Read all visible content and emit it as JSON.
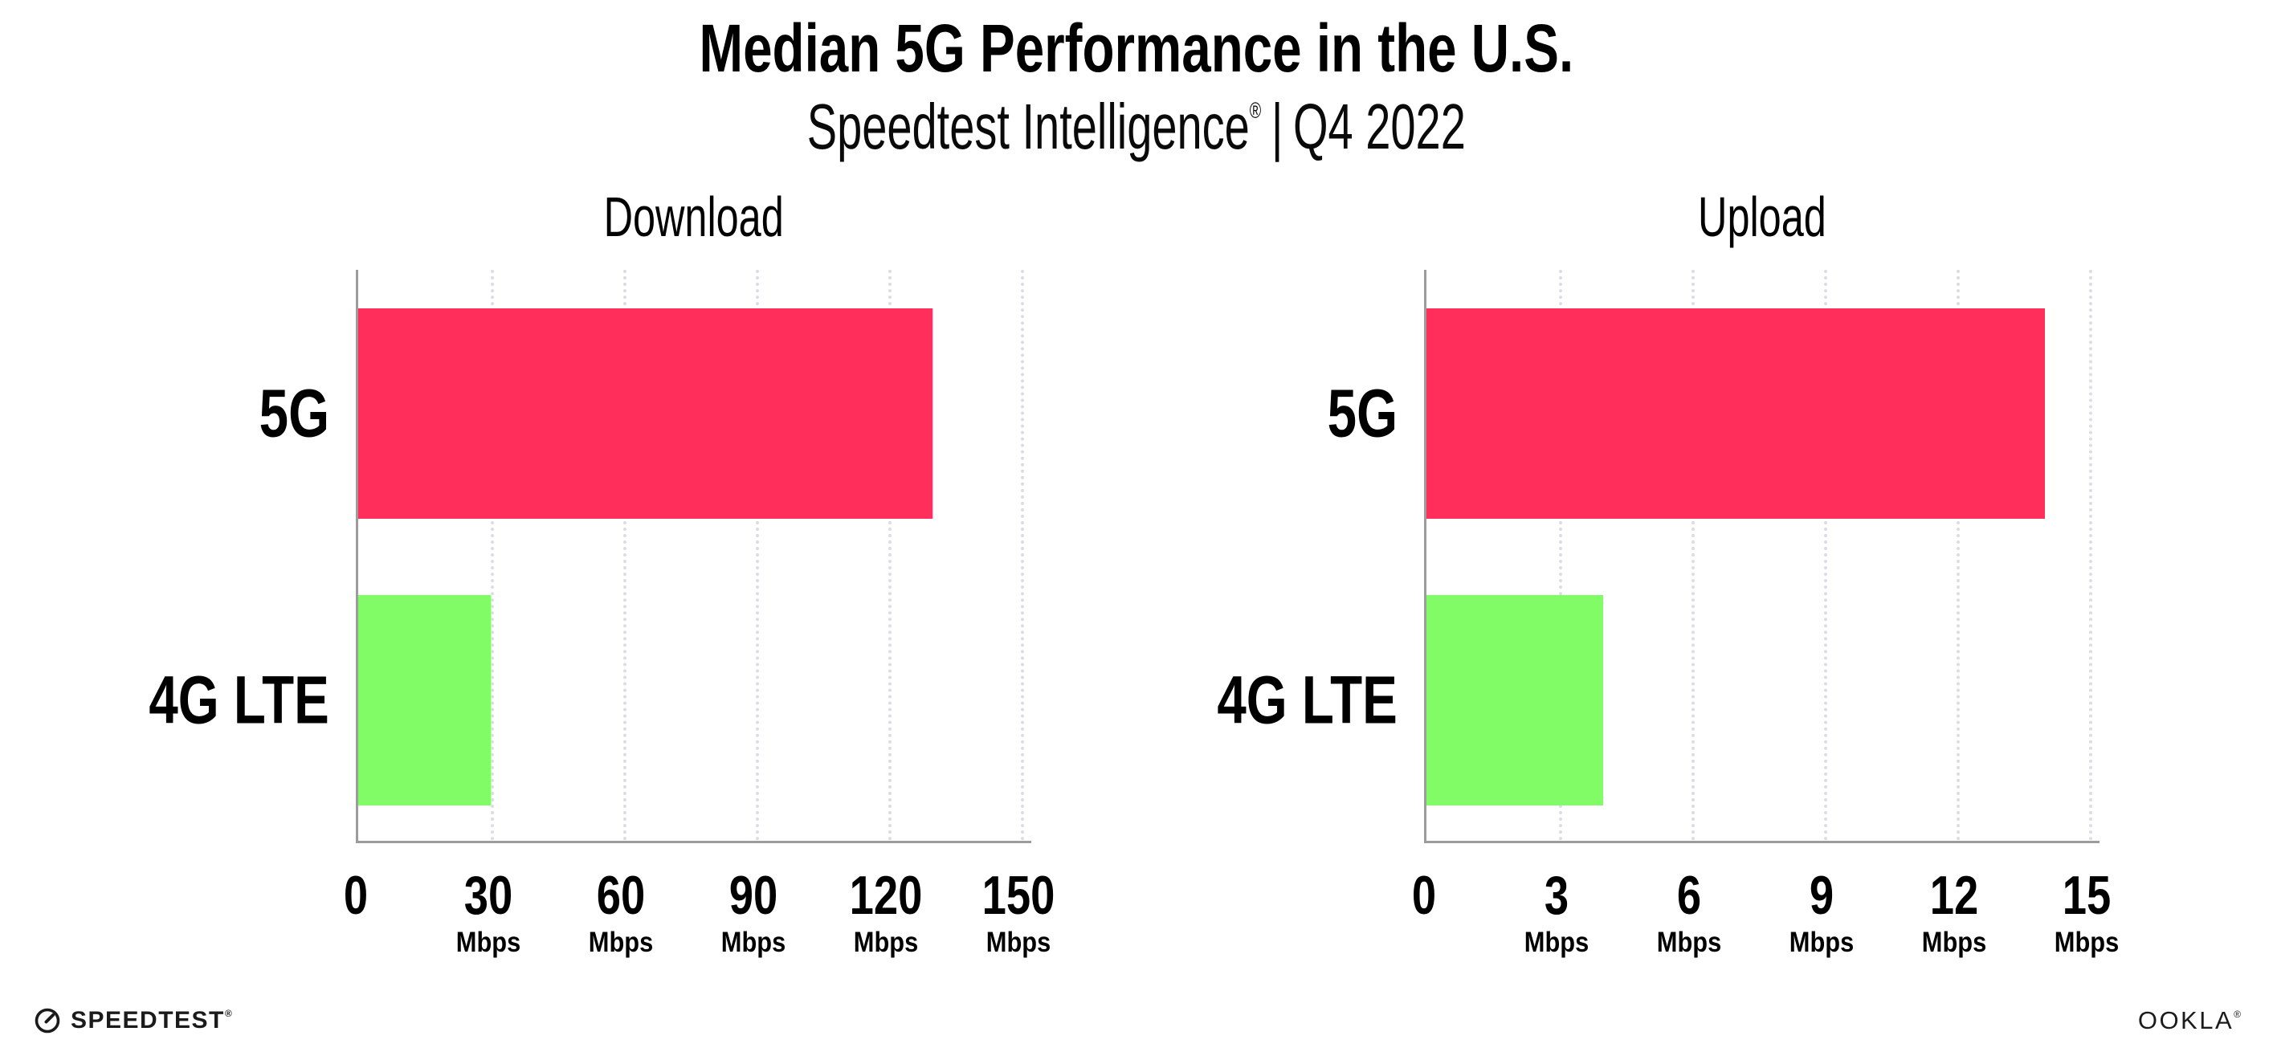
{
  "header": {
    "title": "Median 5G Performance in the U.S.",
    "subtitle_brand": "Speedtest Intelligence",
    "subtitle_registered": "®",
    "subtitle_divider": "|",
    "subtitle_period": "Q4 2022"
  },
  "chart_data": [
    {
      "type": "bar",
      "orientation": "horizontal",
      "title": "Download",
      "categories": [
        "5G",
        "4G LTE"
      ],
      "values": [
        130,
        30
      ],
      "value_unit": "Mbps",
      "series_colors": [
        "#FF2E5B",
        "#81FC67"
      ],
      "xlim": [
        0,
        153
      ],
      "xticks": [
        0,
        30,
        60,
        90,
        120,
        150
      ],
      "xtick_unit": "Mbps",
      "grid": "vertical-dotted",
      "legend": "none"
    },
    {
      "type": "bar",
      "orientation": "horizontal",
      "title": "Upload",
      "categories": [
        "5G",
        "4G LTE"
      ],
      "values": [
        14,
        4
      ],
      "value_unit": "Mbps",
      "series_colors": [
        "#FF2E5B",
        "#81FC67"
      ],
      "xlim": [
        0,
        15.3
      ],
      "xticks": [
        0,
        3,
        6,
        9,
        12,
        15
      ],
      "xtick_unit": "Mbps",
      "grid": "vertical-dotted",
      "legend": "none"
    }
  ],
  "colors": {
    "bar_5g": "#FF2E5B",
    "bar_4g_lte": "#81FC67",
    "axis": "#9c9c9c",
    "gridline": "#dcdce8",
    "text": "#000000"
  },
  "footer": {
    "speedtest_label": "SPEEDTEST",
    "speedtest_registered": "®",
    "speedtest_icon": "speedtest-gauge-icon",
    "ookla_label": "OOKLA",
    "ookla_registered": "®"
  }
}
